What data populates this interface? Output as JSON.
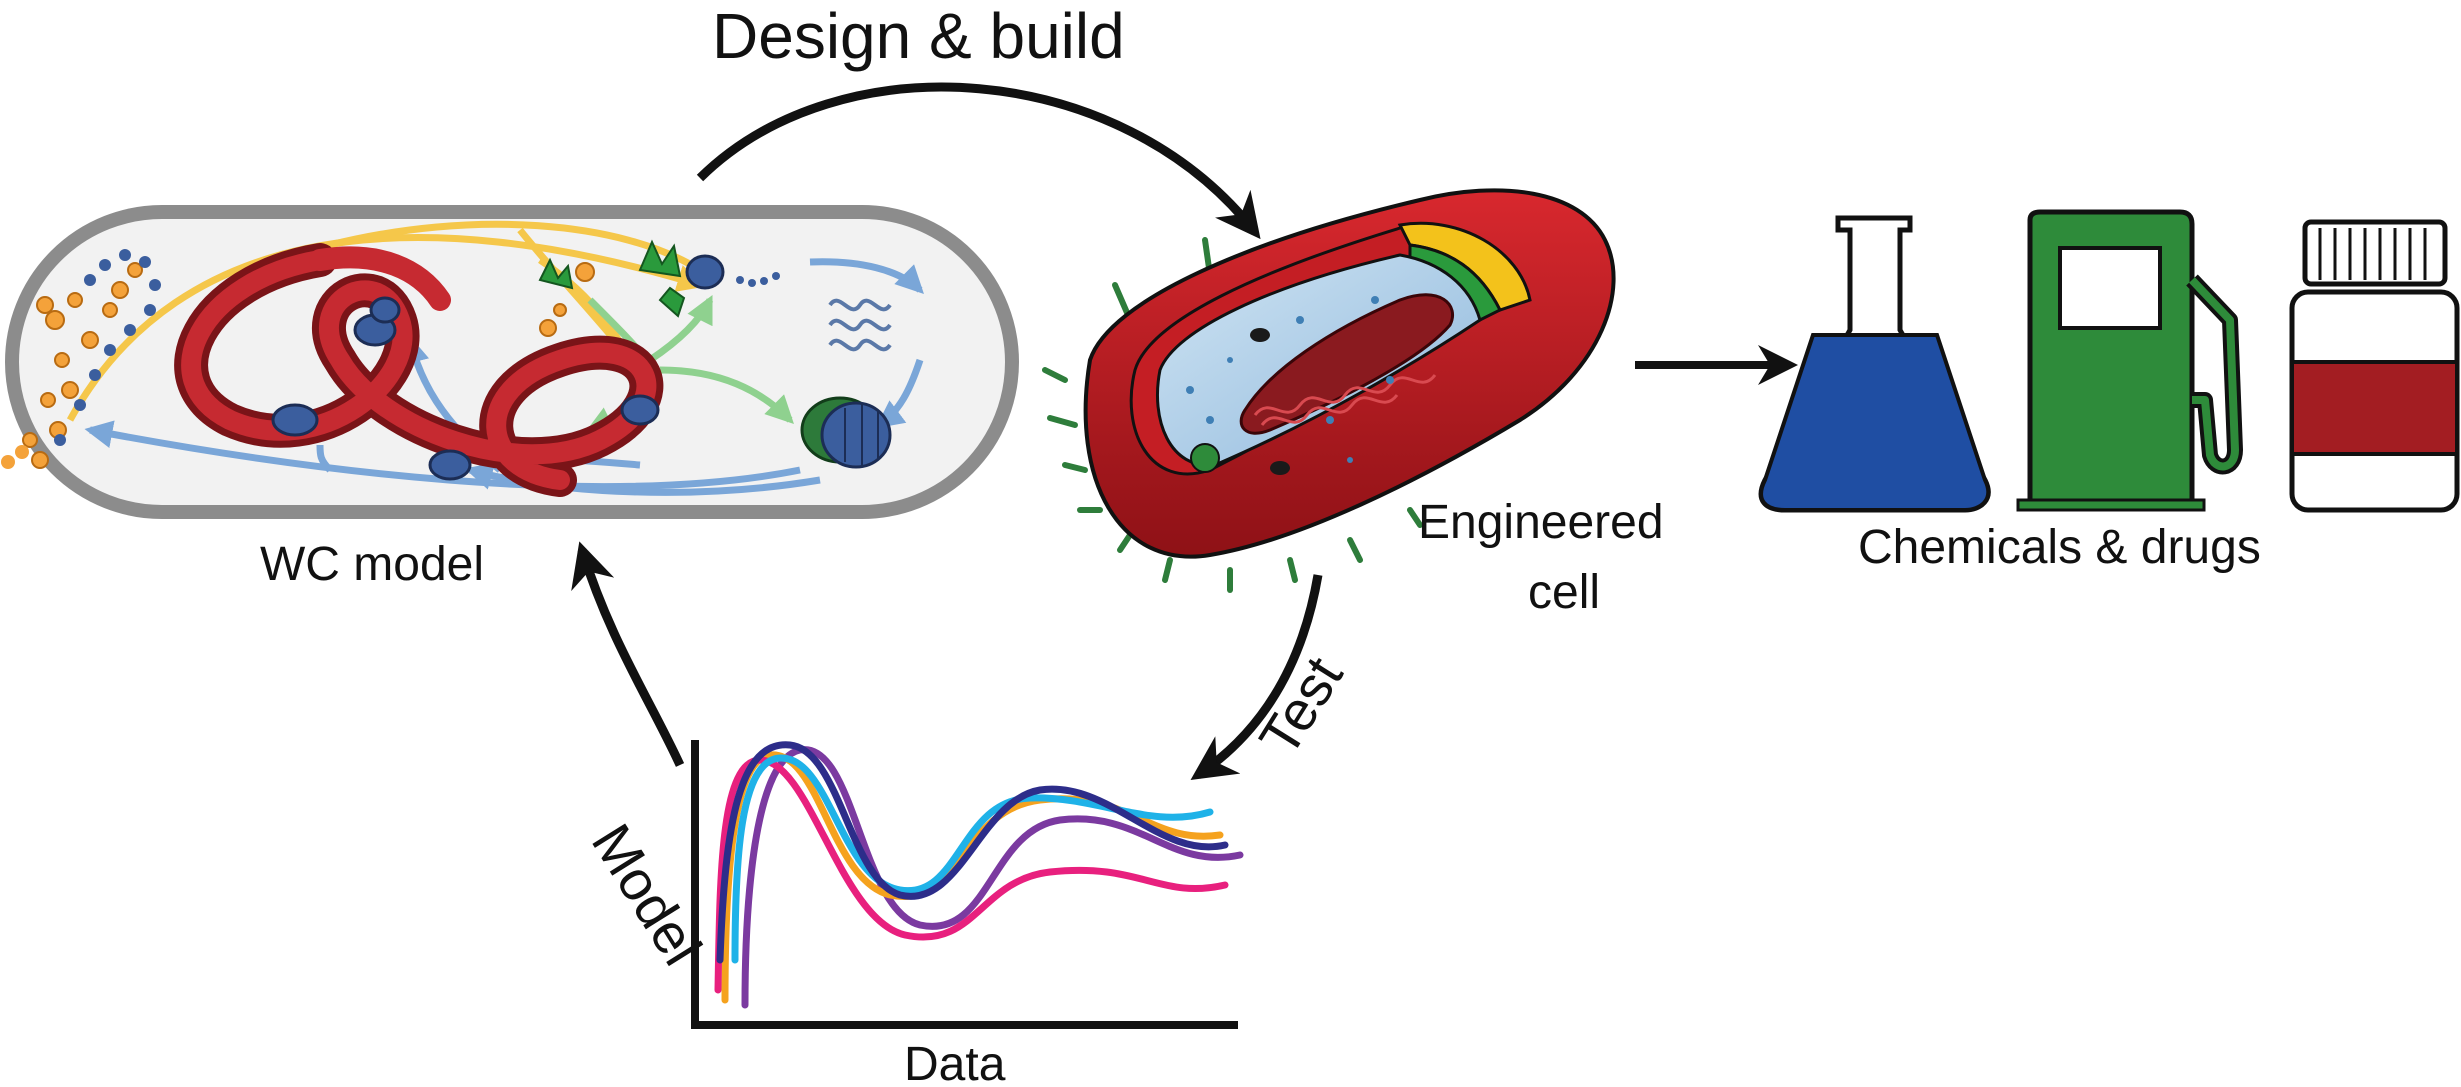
{
  "labels": {
    "design_build": "Design & build",
    "wc_model": "WC model",
    "engineered_line1": "Engineered",
    "engineered_line2": "cell",
    "chemicals_drugs": "Chemicals & drugs",
    "model": "Model",
    "test": "Test",
    "data": "Data"
  },
  "colors": {
    "outline": "#111111",
    "capsule_border": "#8c8c8c",
    "capsule_fill": "#f2f2f2",
    "ribbon_red": "#b8202a",
    "ribbon_dark": "#7a1418",
    "arrow_yellow": "#f5c74a",
    "arrow_blue": "#7aa6d8",
    "arrow_green": "#8fd18f",
    "protein_blue": "#3b5e9e",
    "dot_orange": "#f4a23a",
    "cell_red": "#c41e24",
    "cell_dark": "#8e1116",
    "cytoplasm": "#a9cbe6",
    "layer_yellow": "#f3c21b",
    "layer_green": "#2a9a3c",
    "pili_green": "#2e7d3b",
    "flask_blue": "#1f4ea3",
    "pump_green": "#2e8b3a",
    "bottle_red": "#a31d22",
    "data_purple": "#7b3aa0",
    "data_navy": "#2d2d8a",
    "data_cyan": "#1fb2e8",
    "data_orange": "#f5a21e",
    "data_magenta": "#e8207e"
  },
  "icons": [
    "flask-icon",
    "fuel-pump-icon",
    "pill-bottle-icon"
  ]
}
